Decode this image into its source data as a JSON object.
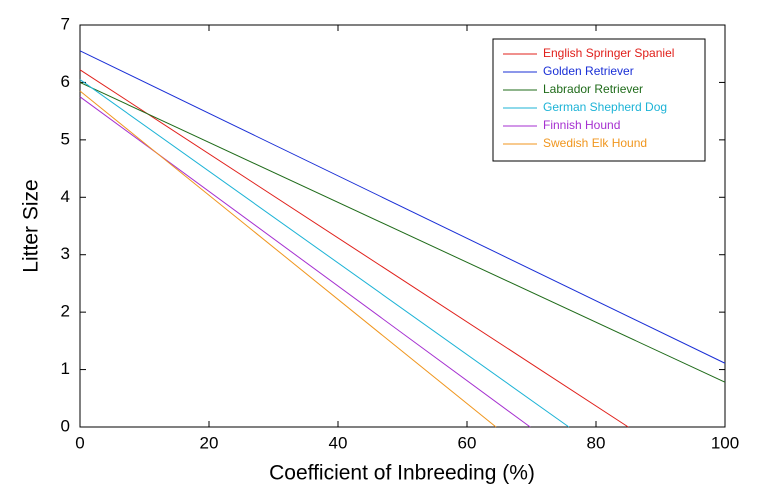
{
  "chart_data": {
    "type": "line",
    "xlabel": "Coefficient of Inbreeding (%)",
    "ylabel": "Litter Size",
    "xlim": [
      0,
      100
    ],
    "xticks": [
      0,
      20,
      40,
      60,
      80,
      100
    ],
    "ylim": [
      0,
      7
    ],
    "yticks": [
      0,
      1,
      2,
      3,
      4,
      5,
      6,
      7
    ],
    "legend": "upper right",
    "series": [
      {
        "name": "English Springer Spaniel",
        "color": "#e0201b",
        "x": [
          0,
          85
        ],
        "values": [
          6.22,
          0
        ]
      },
      {
        "name": "Golden Retriever",
        "color": "#1a2fd6",
        "x": [
          0,
          100
        ],
        "values": [
          6.55,
          1.11
        ]
      },
      {
        "name": "Labrador Retriever",
        "color": "#1f6b1a",
        "x": [
          0,
          100
        ],
        "values": [
          6.0,
          0.78
        ]
      },
      {
        "name": "German Shepherd Dog",
        "color": "#1cb3d6",
        "x": [
          0,
          75.8
        ],
        "values": [
          6.05,
          0
        ]
      },
      {
        "name": "Finnish Hound",
        "color": "#a52fd0",
        "x": [
          0,
          69.8
        ],
        "values": [
          5.75,
          0
        ]
      },
      {
        "name": "Swedish Elk Hound",
        "color": "#f0961e",
        "x": [
          0,
          64.5
        ],
        "values": [
          5.85,
          0
        ]
      }
    ]
  }
}
